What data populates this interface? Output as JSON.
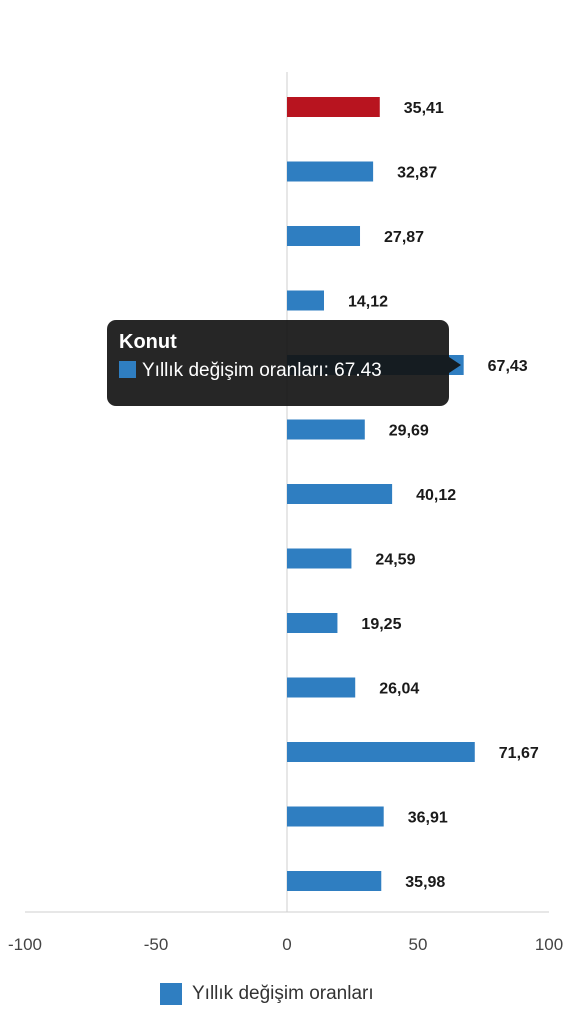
{
  "chart_data": {
    "type": "bar",
    "orientation": "horizontal",
    "categories": [
      "",
      "",
      "",
      "",
      "",
      "",
      "",
      "",
      "",
      "",
      "",
      "",
      ""
    ],
    "series": [
      {
        "name": "Yıllık değişim oranları",
        "values": [
          35.41,
          32.87,
          27.87,
          14.12,
          67.43,
          29.69,
          40.12,
          24.59,
          19.25,
          26.04,
          71.67,
          36.91,
          35.98
        ],
        "value_labels": [
          "35,41",
          "32,87",
          "27,87",
          "14,12",
          "67,43",
          "29,69",
          "40,12",
          "24,59",
          "19,25",
          "26,04",
          "71,67",
          "36,91",
          "35,98"
        ]
      }
    ],
    "xlim": [
      -100,
      100
    ],
    "x_ticks": [
      "-100",
      "-50",
      "0",
      "50",
      "100"
    ],
    "x_tick_values": [
      -100,
      -50,
      0,
      50,
      100
    ],
    "highlight_index": 0,
    "colors": {
      "bar": "#2f7ec1",
      "highlight": "#b8141f",
      "axis": "#cfcfcf"
    },
    "legend_position": "bottom-center",
    "grid": false,
    "tooltip": {
      "title": "Konut",
      "text": "Yıllık değişim oranları: 67.43",
      "index": 4
    }
  }
}
